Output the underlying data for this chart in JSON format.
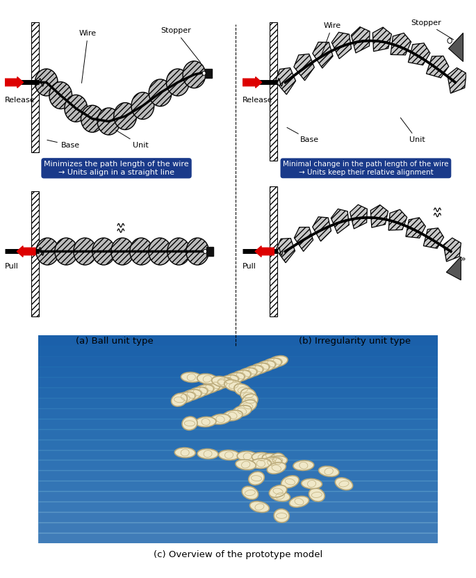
{
  "title_a": "(a) Ball unit type",
  "title_b": "(b) Irregularity unit type",
  "title_c": "(c) Overview of the prototype model",
  "label_release": "Release",
  "label_pull": "Pull",
  "label_wire": "Wire",
  "label_stopper": "Stopper",
  "label_base": "Base",
  "label_unit": "Unit",
  "box_text_a": "Minimizes the path length of the wire\n→ Units align in a straight line",
  "box_text_b": "Minimal change in the path length of the wire\n→ Units keep their relative alignment",
  "bg_color": "#ffffff",
  "box_bg_color": "#1a3a8a",
  "box_text_color": "#ffffff",
  "arrow_color": "#cc0000",
  "ball_color": "#b0b0b0",
  "font_size_label": 8,
  "font_size_title": 9.5,
  "font_size_box": 8
}
